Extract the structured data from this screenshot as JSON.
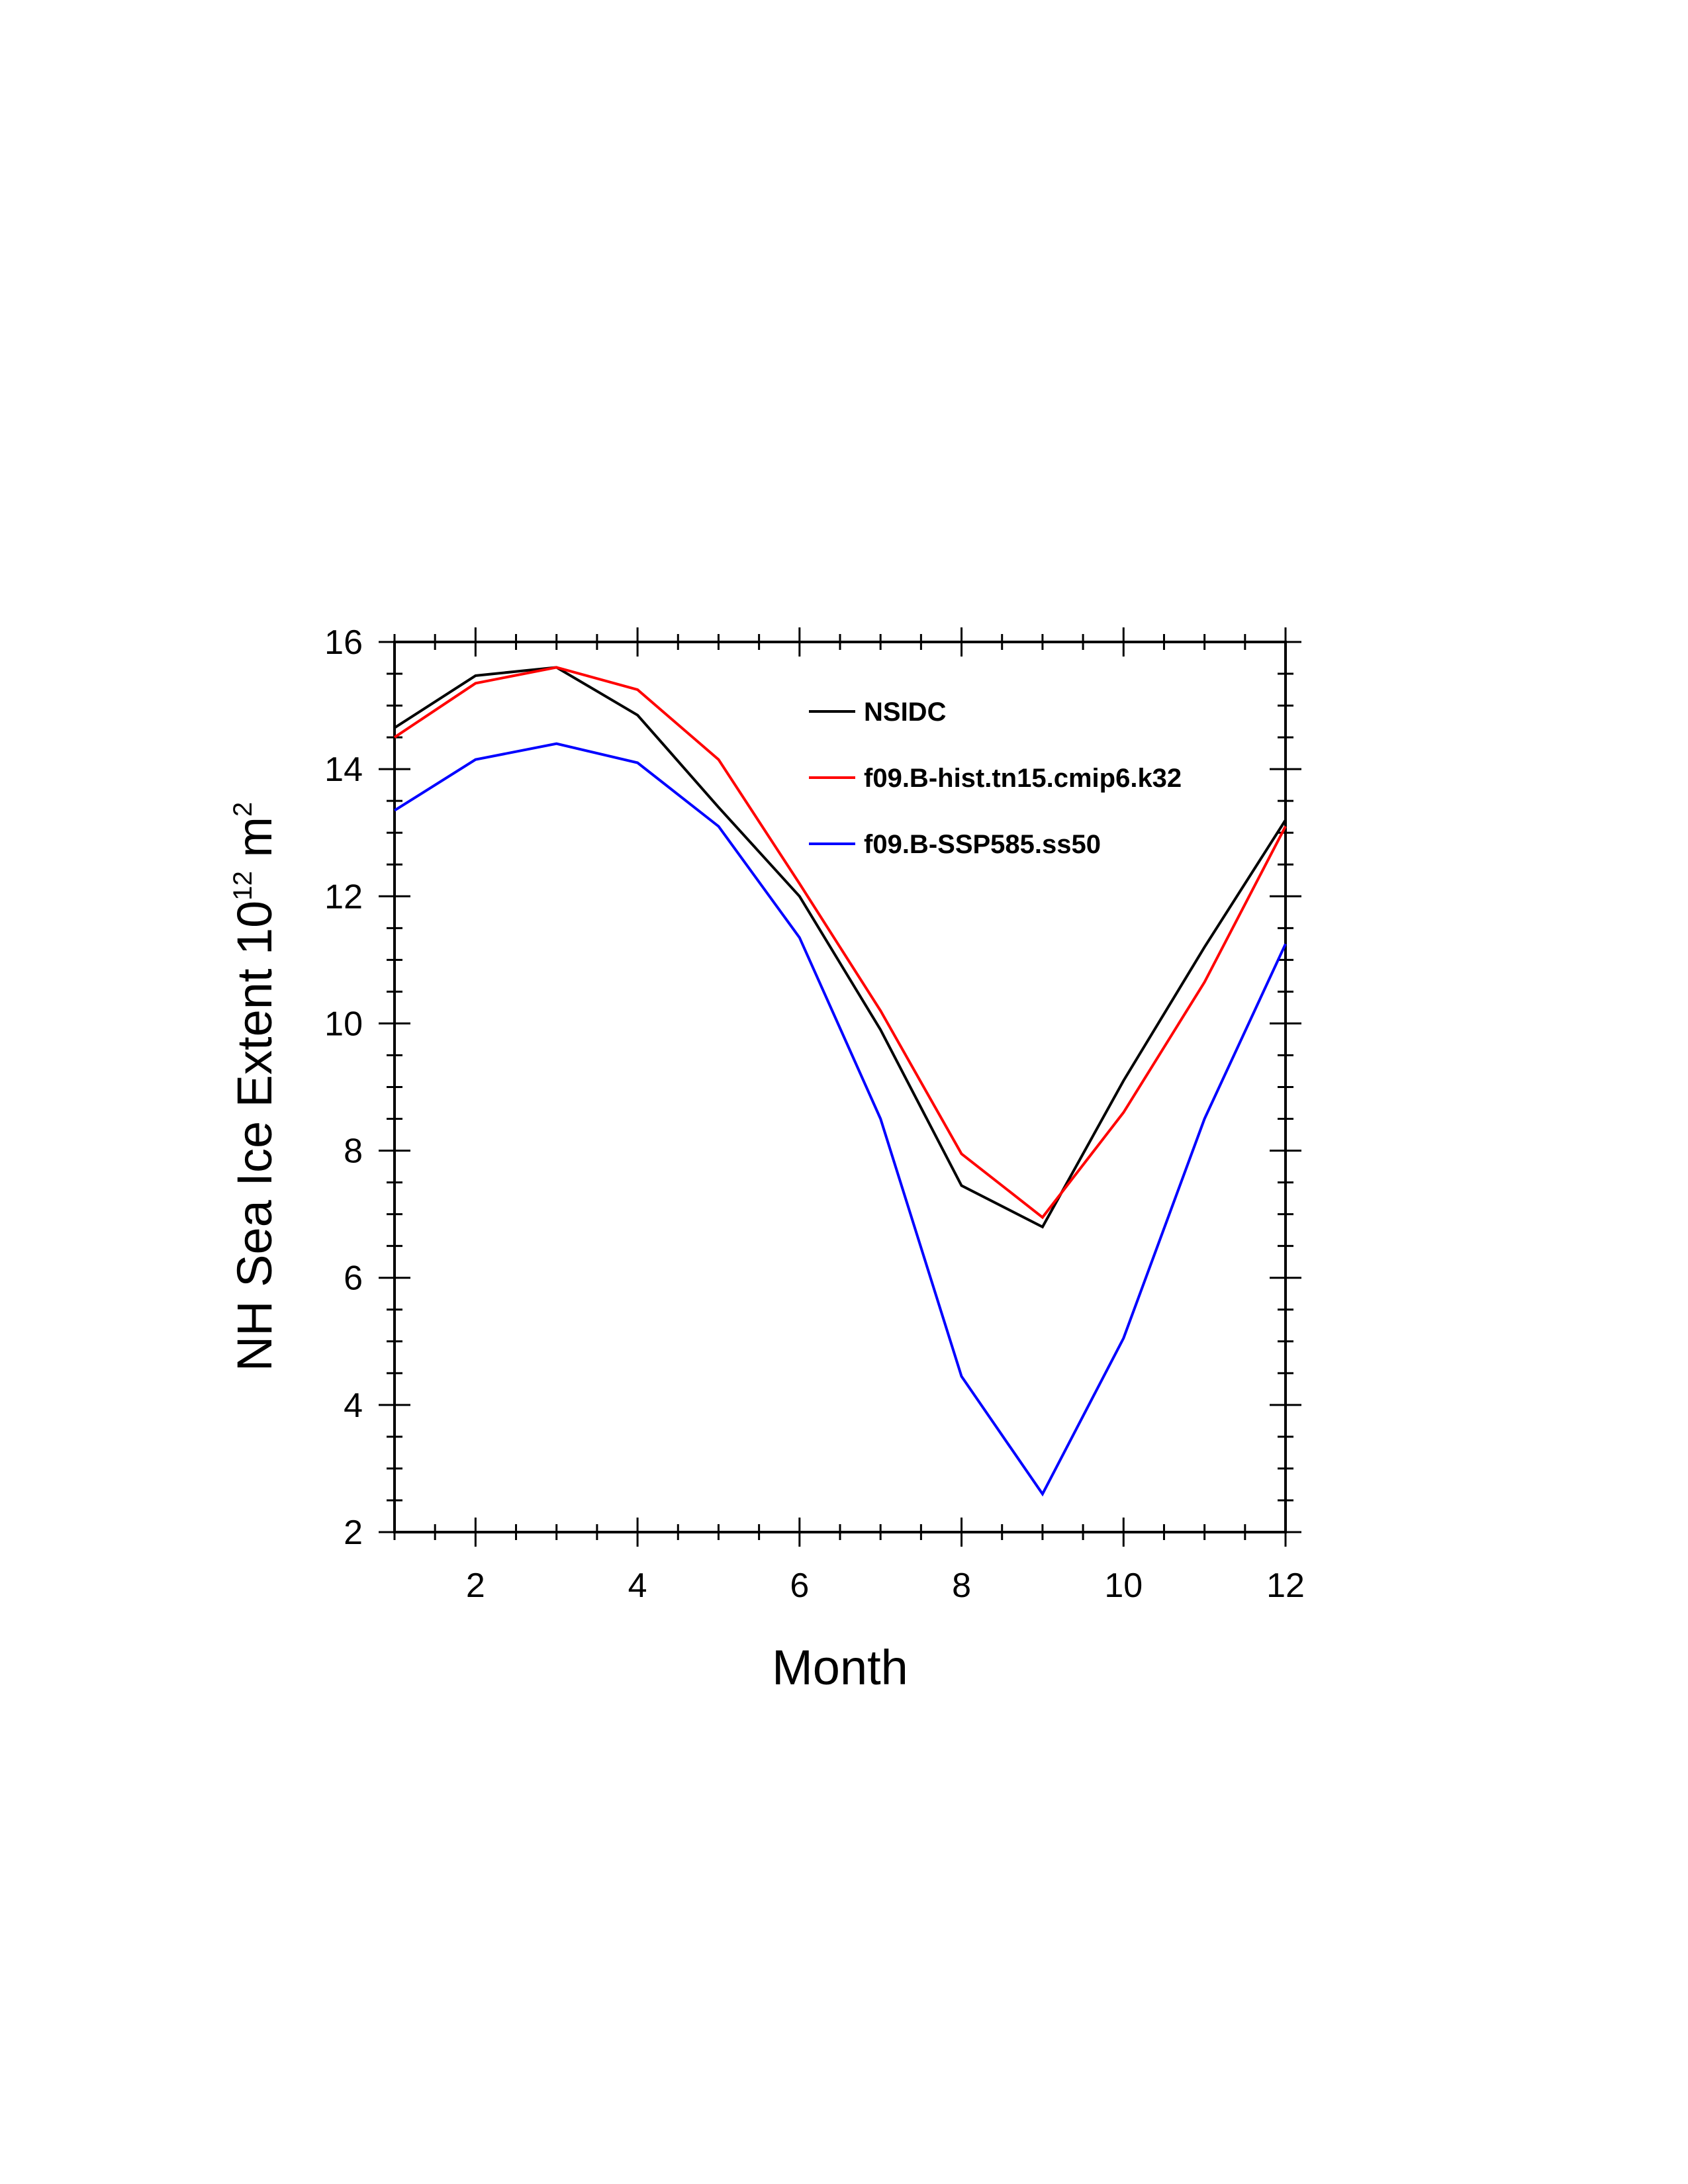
{
  "chart_data": {
    "type": "line",
    "xlabel": "Month",
    "ylabel": {
      "main": "NH Sea Ice Extent 10",
      "exp1": "12",
      "mid": " m",
      "exp2": "2"
    },
    "xlim": [
      1,
      12
    ],
    "ylim": [
      2,
      16
    ],
    "x_ticks": [
      2,
      4,
      6,
      8,
      10,
      12
    ],
    "y_ticks": [
      2,
      4,
      6,
      8,
      10,
      12,
      14,
      16
    ],
    "x": [
      1,
      2,
      3,
      4,
      5,
      6,
      7,
      8,
      9,
      10,
      11,
      12
    ],
    "legend_position": "top-right",
    "grid": false,
    "series": [
      {
        "name": "NSIDC",
        "color": "#000000",
        "values": [
          14.65,
          15.47,
          15.6,
          14.85,
          13.4,
          12.0,
          9.9,
          7.45,
          6.8,
          9.1,
          11.2,
          13.2
        ]
      },
      {
        "name": "f09.B-hist.tn15.cmip6.k32",
        "color": "#ff0000",
        "values": [
          14.5,
          15.35,
          15.6,
          15.25,
          14.15,
          12.2,
          10.2,
          7.95,
          6.95,
          8.6,
          10.65,
          13.1
        ]
      },
      {
        "name": "f09.B-SSP585.ss50",
        "color": "#0000ff",
        "values": [
          13.35,
          14.15,
          14.4,
          14.1,
          13.1,
          11.35,
          8.5,
          4.45,
          2.6,
          5.05,
          8.5,
          11.25
        ]
      }
    ]
  }
}
